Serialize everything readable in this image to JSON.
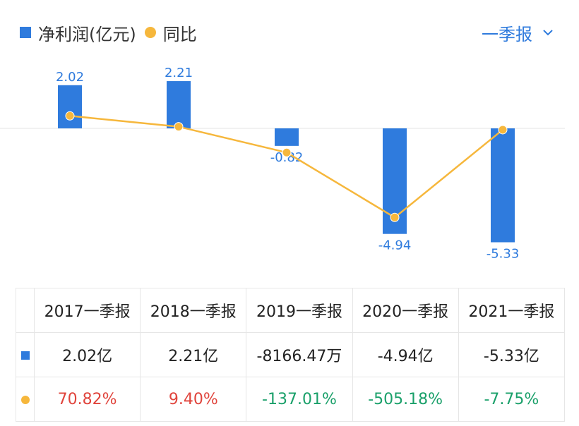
{
  "legend": {
    "bar_label": "净利润(亿元)",
    "line_label": "同比"
  },
  "period_selector": {
    "label": "一季报"
  },
  "colors": {
    "bar": "#2f7bdd",
    "line": "#f6b73c",
    "positive": "#e0443c",
    "negative": "#1aa06a"
  },
  "chart_data": {
    "type": "bar",
    "categories": [
      "2017一季报",
      "2018一季报",
      "2019一季报",
      "2020一季报",
      "2021一季报"
    ],
    "series": [
      {
        "name": "净利润(亿元)",
        "type": "bar",
        "values": [
          2.02,
          2.21,
          -0.82,
          -4.94,
          -5.33
        ],
        "labels": [
          "2.02",
          "2.21",
          "-0.82",
          "-4.94",
          "-5.33"
        ]
      },
      {
        "name": "同比",
        "type": "line",
        "values": [
          70.82,
          9.4,
          -137.01,
          -505.18,
          -7.75
        ]
      }
    ],
    "legend_position": "top-left"
  },
  "table": {
    "headers": [
      "2017一季报",
      "2018一季报",
      "2019一季报",
      "2020一季报",
      "2021一季报"
    ],
    "profit_row": [
      "2.02亿",
      "2.21亿",
      "-8166.47万",
      "-4.94亿",
      "-5.33亿"
    ],
    "yoy_row": [
      "70.82%",
      "9.40%",
      "-137.01%",
      "-505.18%",
      "-7.75%"
    ]
  }
}
